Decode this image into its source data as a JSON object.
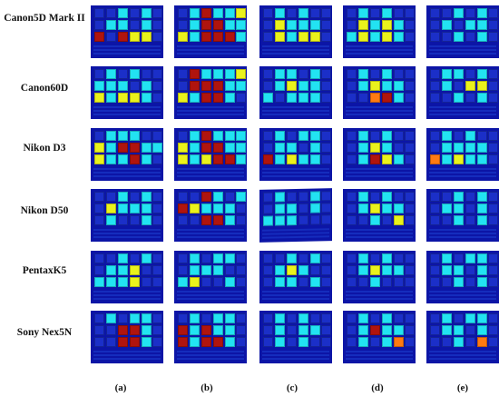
{
  "row_labels": [
    "Canon5D Mark II",
    "Canon60D",
    "Nikon D3",
    "Nikon D50",
    "PentaxK5",
    "Sony Nex5N"
  ],
  "column_labels": [
    "(a)",
    "(b)",
    "(c)",
    "(d)",
    "(e)"
  ],
  "palette": {
    "background": "#0c15a6",
    "d": "#1b2fc8",
    "c": "#22e3f2",
    "y": "#eaf21c",
    "o": "#ff7a12",
    "r": "#b0140e"
  },
  "panels": [
    [
      [
        "ddcdcd",
        "dccdcd",
        "rdryyd"
      ],
      [
        "dcdcdd",
        "cccdcd",
        "ycyycd"
      ],
      [
        "dcccdd",
        "ycrrcc",
        "yccrcd"
      ],
      [
        "ddcdcd",
        "dycccd",
        "dcddcd"
      ],
      [
        "ddcdcd",
        "dccydd",
        "cccydd"
      ],
      [
        "dcdccd",
        "ddrrcd",
        "ddrrcd"
      ]
    ],
    [
      [
        "dcrccy",
        "dcrrcc",
        "ycrrrc"
      ],
      [
        "drcccy",
        "drrrcc",
        "ycrrcd"
      ],
      [
        "dcrccc",
        "ycrrcc",
        "ycyrrc"
      ],
      [
        "ddrcdc",
        "rycccd",
        "ddrrcd"
      ],
      [
        "dcdccd",
        "dcccdd",
        "cyddcd"
      ],
      [
        "dcdccd",
        "rcrccd",
        "rcrrcd"
      ]
    ],
    [
      [
        "dcdcdd",
        "dycccd",
        "dycyyd"
      ],
      [
        "dccdcd",
        "dcyccd",
        "cdcccd"
      ],
      [
        "dcdccd",
        "dccdcd",
        "rcyccd"
      ],
      [
        "dcddcd",
        "dccdcd",
        "cccddd"
      ],
      [
        "ddcdcd",
        "dcycdd",
        "dccdcd"
      ],
      [
        "dcdcdd",
        "dcdccd",
        "dcdcdd"
      ]
    ],
    [
      [
        "dcdcdd",
        "dycycd",
        "cycycd"
      ],
      [
        "dcdcdd",
        "dcyccd",
        "ddorcd"
      ],
      [
        "dcdcdd",
        "dcycdd",
        "dcrycd"
      ],
      [
        "dcdcdd",
        "dcyccd",
        "ddcdyd"
      ],
      [
        "dcdcdd",
        "dcyccd",
        "ddcddd"
      ],
      [
        "dcdcdd",
        "dcrccd",
        "dcdcod"
      ]
    ],
    [
      [
        "ddcdcd",
        "dcdccd",
        "ddcdcd"
      ],
      [
        "dccdcd",
        "dcdyyd",
        "ddcdcd"
      ],
      [
        "dcdcdd",
        "dccccd",
        "ocyccd"
      ],
      [
        "ddcdcd",
        "dccdcd",
        "ddcdcd"
      ],
      [
        "dcdccd",
        "dccdcd",
        "ddcdcd"
      ],
      [
        "dcdccd",
        "dccdcd",
        "ddcdod"
      ]
    ]
  ]
}
